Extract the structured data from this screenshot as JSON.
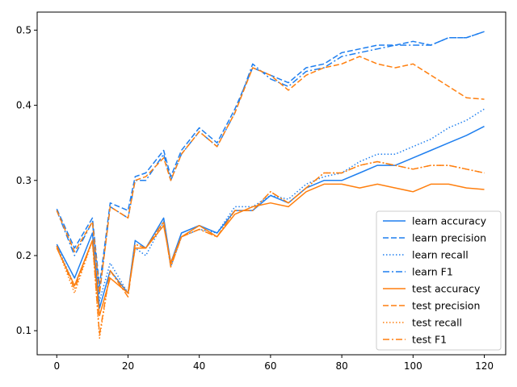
{
  "chart_data": {
    "type": "line",
    "title": "",
    "xlabel": "",
    "ylabel": "",
    "xlim": [
      -5.5,
      126
    ],
    "ylim": [
      0.068,
      0.524
    ],
    "xticks": [
      0,
      20,
      40,
      60,
      80,
      100,
      120
    ],
    "yticks": [
      0.1,
      0.2,
      0.3,
      0.4,
      0.5
    ],
    "xtick_labels": [
      "0",
      "20",
      "40",
      "60",
      "80",
      "100",
      "120"
    ],
    "ytick_labels": [
      "0.1",
      "0.2",
      "0.3",
      "0.4",
      "0.5"
    ],
    "grid": false,
    "legend_position": "lower-right",
    "colors": {
      "learn": "#1f7fef",
      "test": "#ff7f0e"
    },
    "x": [
      0,
      5,
      10,
      12,
      15,
      20,
      22,
      25,
      30,
      32,
      35,
      40,
      45,
      50,
      55,
      60,
      65,
      70,
      75,
      80,
      85,
      90,
      95,
      100,
      105,
      110,
      115,
      120
    ],
    "series": [
      {
        "name": "learn accuracy",
        "group": "learn",
        "style": "solid",
        "values": [
          0.215,
          0.17,
          0.23,
          0.13,
          0.18,
          0.15,
          0.22,
          0.21,
          0.25,
          0.19,
          0.23,
          0.24,
          0.23,
          0.26,
          0.26,
          0.28,
          0.27,
          0.29,
          0.3,
          0.3,
          0.31,
          0.32,
          0.32,
          0.33,
          0.34,
          0.35,
          0.36,
          0.372
        ]
      },
      {
        "name": "learn precision",
        "group": "learn",
        "style": "dashed",
        "values": [
          0.262,
          0.21,
          0.25,
          0.16,
          0.27,
          0.26,
          0.305,
          0.31,
          0.34,
          0.305,
          0.34,
          0.37,
          0.35,
          0.395,
          0.45,
          0.44,
          0.43,
          0.45,
          0.455,
          0.47,
          0.475,
          0.48,
          0.48,
          0.485,
          0.48,
          0.49,
          0.49,
          0.498
        ]
      },
      {
        "name": "learn recall",
        "group": "learn",
        "style": "dotted",
        "values": [
          0.213,
          0.16,
          0.22,
          0.14,
          0.19,
          0.15,
          0.21,
          0.2,
          0.245,
          0.185,
          0.225,
          0.235,
          0.23,
          0.265,
          0.265,
          0.28,
          0.275,
          0.295,
          0.305,
          0.31,
          0.325,
          0.335,
          0.335,
          0.345,
          0.355,
          0.37,
          0.38,
          0.395
        ]
      },
      {
        "name": "learn F1",
        "group": "learn",
        "style": "dashdot",
        "values": [
          0.26,
          0.2,
          0.245,
          0.15,
          0.265,
          0.25,
          0.3,
          0.3,
          0.335,
          0.3,
          0.335,
          0.365,
          0.345,
          0.39,
          0.455,
          0.435,
          0.425,
          0.445,
          0.45,
          0.465,
          0.47,
          0.475,
          0.48,
          0.48,
          0.48,
          0.49,
          0.49,
          0.498
        ]
      },
      {
        "name": "test accuracy",
        "group": "test",
        "style": "solid",
        "values": [
          0.21,
          0.16,
          0.22,
          0.12,
          0.17,
          0.15,
          0.21,
          0.21,
          0.24,
          0.19,
          0.225,
          0.24,
          0.225,
          0.255,
          0.265,
          0.27,
          0.265,
          0.285,
          0.295,
          0.295,
          0.29,
          0.295,
          0.29,
          0.285,
          0.295,
          0.295,
          0.29,
          0.288
        ]
      },
      {
        "name": "test precision",
        "group": "test",
        "style": "dashed",
        "values": [
          0.26,
          0.205,
          0.245,
          0.15,
          0.265,
          0.25,
          0.3,
          0.305,
          0.33,
          0.3,
          0.335,
          0.365,
          0.345,
          0.39,
          0.45,
          0.44,
          0.42,
          0.44,
          0.45,
          0.455,
          0.465,
          0.455,
          0.45,
          0.455,
          0.44,
          0.425,
          0.41,
          0.408
        ]
      },
      {
        "name": "test recall",
        "group": "test",
        "style": "dotted",
        "values": [
          0.212,
          0.15,
          0.22,
          0.09,
          0.18,
          0.15,
          0.215,
          0.21,
          0.245,
          0.185,
          0.225,
          0.235,
          0.225,
          0.26,
          0.26,
          0.285,
          0.27,
          0.29,
          0.31,
          0.31,
          0.32,
          0.325,
          0.32,
          0.315,
          0.32,
          0.32,
          0.315,
          0.31
        ]
      },
      {
        "name": "test F1",
        "group": "test",
        "style": "dashdot",
        "values": [
          0.213,
          0.155,
          0.22,
          0.095,
          0.18,
          0.145,
          0.215,
          0.21,
          0.245,
          0.185,
          0.225,
          0.235,
          0.225,
          0.26,
          0.26,
          0.285,
          0.27,
          0.29,
          0.31,
          0.31,
          0.32,
          0.325,
          0.32,
          0.315,
          0.32,
          0.32,
          0.315,
          0.31
        ]
      }
    ]
  }
}
